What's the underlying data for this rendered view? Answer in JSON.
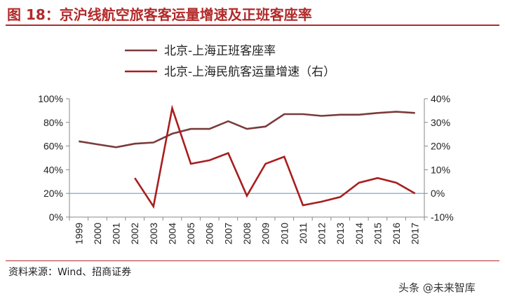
{
  "header": {
    "title": "图 18：京沪线航空旅客客运量增速及正班客座率"
  },
  "footer": {
    "source": "资料来源：Wind、招商证券",
    "watermark": "头条 @未来智库"
  },
  "chart_data": {
    "type": "line",
    "x": [
      "1999",
      "2000",
      "2001",
      "2002",
      "2003",
      "2004",
      "2005",
      "2006",
      "2007",
      "2008",
      "2009",
      "2010",
      "2011",
      "2012",
      "2013",
      "2014",
      "2015",
      "2016",
      "2017"
    ],
    "series": [
      {
        "name": "北京-上海正班客座率",
        "axis": "left",
        "color": "#7a3b3b",
        "values": [
          64,
          61.5,
          59,
          62,
          63,
          70.5,
          74.5,
          74.5,
          81,
          74.5,
          76.5,
          87,
          87,
          85.5,
          86.5,
          86.5,
          88,
          89,
          88
        ]
      },
      {
        "name": "北京-上海民航客运量增速（右）",
        "axis": "right",
        "color": "#a81e1e",
        "values": [
          null,
          null,
          null,
          6.5,
          -5.5,
          36,
          12.5,
          14,
          17,
          -1,
          12.5,
          15.5,
          -5,
          -3.5,
          -1.5,
          4.5,
          6.5,
          4.5,
          0
        ]
      }
    ],
    "y_left": {
      "min": 0,
      "max": 100,
      "step": 20,
      "tick_labels": [
        "0%",
        "20%",
        "40%",
        "60%",
        "80%",
        "100%"
      ]
    },
    "y_right": {
      "min": -10,
      "max": 40,
      "step": 10,
      "tick_labels": [
        "-10%",
        "0%",
        "10%",
        "20%",
        "30%",
        "40%"
      ]
    },
    "reference_line": {
      "axis": "right",
      "value": 0,
      "color": "#6f9bd0"
    },
    "legend_position": "top",
    "grid": false
  }
}
